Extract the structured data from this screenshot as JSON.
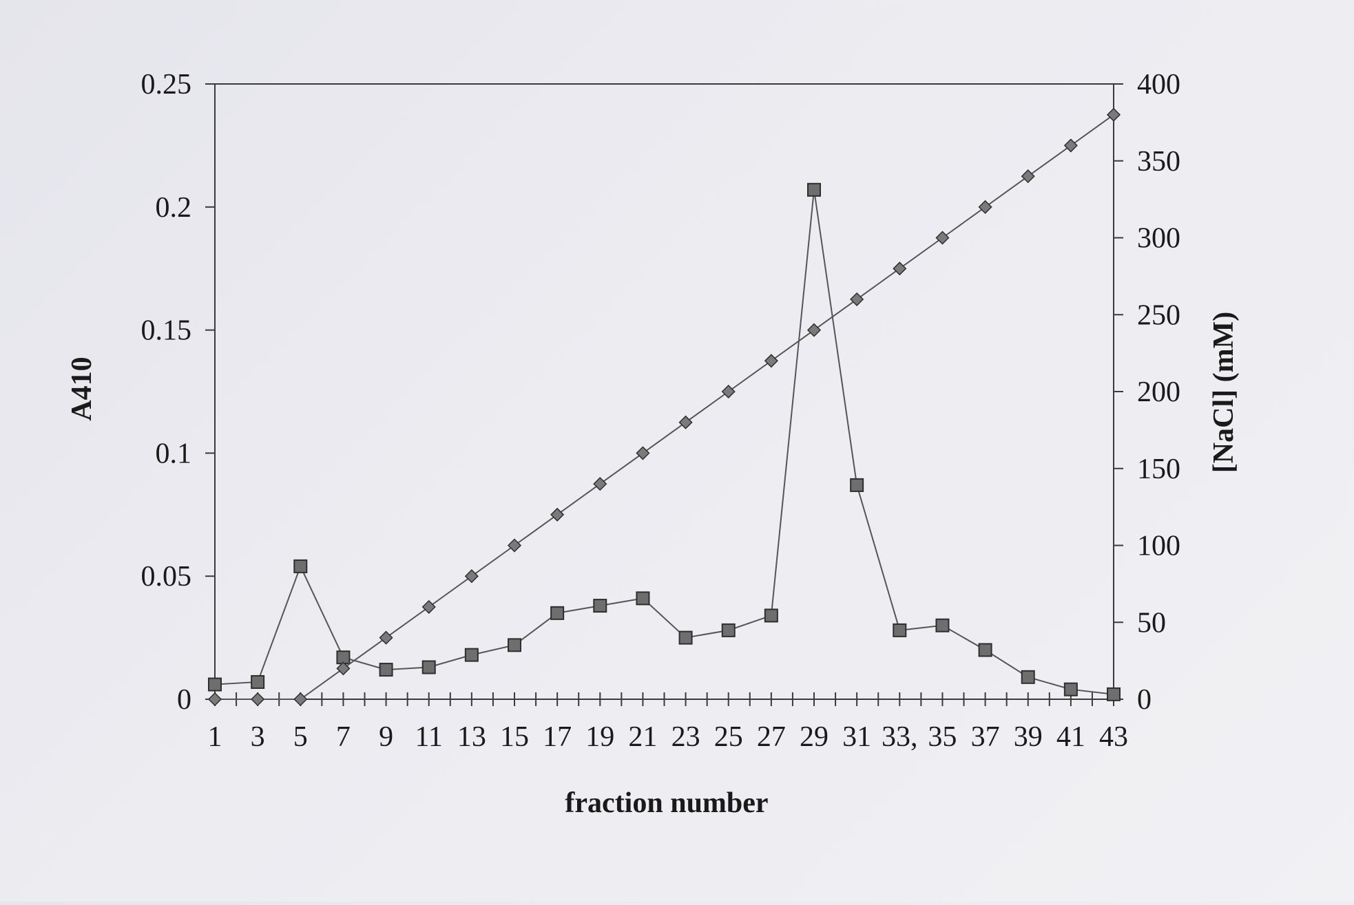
{
  "chart_data": {
    "type": "line",
    "xlabel": "fraction number",
    "ylabel": "A410",
    "y2label": "[NaCl] (mM)",
    "categories": [
      1,
      3,
      5,
      7,
      9,
      11,
      13,
      15,
      17,
      19,
      21,
      23,
      25,
      27,
      29,
      31,
      33,
      35,
      37,
      39,
      41,
      43
    ],
    "x_tick_labels": [
      "1",
      "3",
      "5",
      "7",
      "9",
      "11",
      "13",
      "15",
      "17",
      "19",
      "21",
      "23",
      "25",
      "27",
      "29",
      "31",
      "33,",
      "35",
      "37",
      "39",
      "41",
      "43"
    ],
    "ylim": [
      0,
      0.25
    ],
    "y_ticks": [
      "0",
      "0.05",
      "0.1",
      "0.15",
      "0.2",
      "0.25"
    ],
    "y2lim": [
      0,
      400
    ],
    "y2_ticks": [
      "0",
      "50",
      "100",
      "150",
      "200",
      "250",
      "300",
      "350",
      "400"
    ],
    "grid": false,
    "series": [
      {
        "axis": "left",
        "marker": "square",
        "values": [
          0.006,
          0.007,
          0.054,
          0.017,
          0.012,
          0.013,
          0.018,
          0.022,
          0.035,
          0.038,
          0.041,
          0.025,
          0.028,
          0.034,
          0.207,
          0.087,
          0.028,
          0.03,
          0.02,
          0.009,
          0.004,
          0.002
        ]
      },
      {
        "axis": "right",
        "marker": "diamond",
        "values": [
          0,
          0,
          0,
          20,
          40,
          60,
          80,
          100,
          120,
          140,
          160,
          180,
          200,
          220,
          240,
          260,
          280,
          300,
          320,
          340,
          360,
          380
        ]
      }
    ]
  }
}
